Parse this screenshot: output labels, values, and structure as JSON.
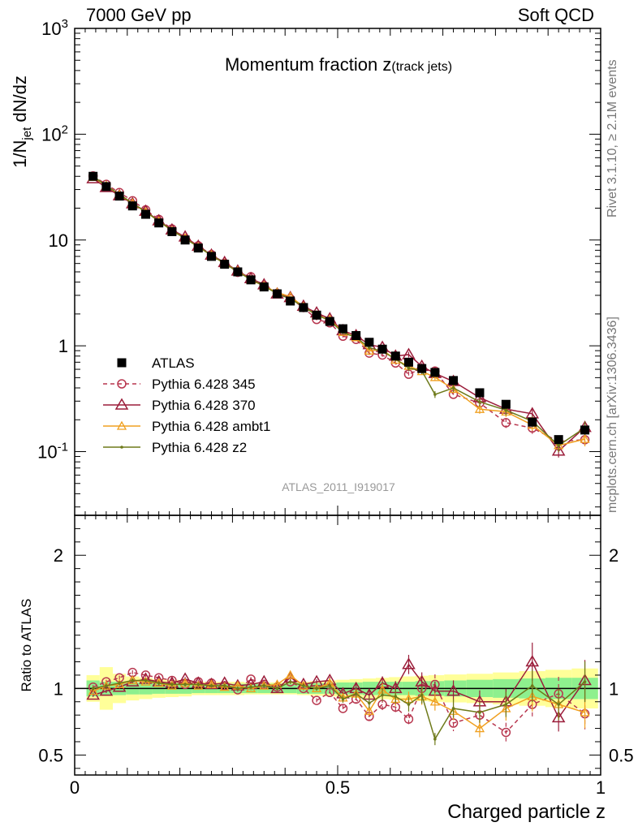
{
  "header": {
    "left": "7000 GeV pp",
    "right": "Soft QCD"
  },
  "side_text": {
    "rivet": "Rivet 3.1.10, ≥ 2.1M events",
    "mcplots": "mcplots.cern.ch [arXiv:1306.3436]"
  },
  "chart_data": {
    "type": "line",
    "title": "Momentum fraction z",
    "title_sub": "(track jets)",
    "ylabel": "1/N_jet dN/dz",
    "xlabel": "Charged particle z",
    "ratio_ylabel": "Ratio to ATLAS",
    "analysis_label": "ATLAS_2011_I919017",
    "yscale": "log",
    "xlim": [
      0,
      1
    ],
    "ylim": [
      0.025,
      1000
    ],
    "ratio_ylim": [
      0.35,
      2.3
    ],
    "x_ticklabels": [
      "0",
      "0.5",
      "1"
    ],
    "y_ticklabels": [
      "10^-1",
      "1",
      "10",
      "10^2",
      "10^3"
    ],
    "ratio_ticklabels": [
      "0.5",
      "1",
      "2"
    ],
    "legend_position": "lower-left",
    "x": [
      0.035,
      0.06,
      0.085,
      0.11,
      0.135,
      0.16,
      0.185,
      0.21,
      0.235,
      0.26,
      0.285,
      0.31,
      0.335,
      0.36,
      0.385,
      0.41,
      0.435,
      0.46,
      0.485,
      0.51,
      0.535,
      0.56,
      0.585,
      0.61,
      0.635,
      0.66,
      0.685,
      0.72,
      0.77,
      0.82,
      0.87,
      0.92,
      0.97
    ],
    "series": [
      {
        "name": "ATLAS",
        "color": "#000000",
        "values": [
          40,
          32,
          26,
          21,
          17.5,
          14.5,
          12,
          10,
          8.4,
          7,
          5.9,
          5,
          4.2,
          3.6,
          3.1,
          2.65,
          2.3,
          1.95,
          1.7,
          1.45,
          1.25,
          1.08,
          0.93,
          0.8,
          0.7,
          0.61,
          0.56,
          0.47,
          0.36,
          0.28,
          0.19,
          0.13,
          0.16
        ],
        "band_inner": [
          0.06,
          0.05,
          0.05,
          0.045,
          0.045,
          0.04,
          0.04,
          0.04,
          0.035,
          0.035,
          0.035,
          0.035,
          0.035,
          0.035,
          0.035,
          0.035,
          0.04,
          0.04,
          0.04,
          0.045,
          0.045,
          0.05,
          0.05,
          0.05,
          0.05,
          0.055,
          0.055,
          0.06,
          0.065,
          0.07,
          0.075,
          0.08,
          0.08
        ],
        "band_outer": [
          0.1,
          0.16,
          0.11,
          0.09,
          0.08,
          0.07,
          0.065,
          0.06,
          0.05,
          0.05,
          0.05,
          0.05,
          0.045,
          0.045,
          0.045,
          0.045,
          0.05,
          0.055,
          0.06,
          0.065,
          0.07,
          0.075,
          0.08,
          0.085,
          0.09,
          0.095,
          0.1,
          0.105,
          0.11,
          0.12,
          0.13,
          0.14,
          0.15
        ]
      },
      {
        "name": "Pythia 6.428 345",
        "color": "#b8374f",
        "ratio": [
          1.01,
          1.05,
          1.08,
          1.12,
          1.1,
          1.08,
          1.06,
          1.03,
          1.05,
          1.04,
          1.02,
          0.99,
          1.07,
          1.03,
          1.01,
          1.05,
          1.0,
          0.91,
          0.97,
          0.85,
          0.92,
          0.79,
          0.88,
          0.86,
          0.77,
          1.0,
          1.03,
          0.74,
          0.8,
          0.67,
          0.88,
          0.96,
          0.81
        ]
      },
      {
        "name": "Pythia 6.428 370",
        "color": "#9b1d3a",
        "ratio": [
          0.95,
          0.98,
          1.01,
          1.05,
          1.07,
          1.05,
          1.04,
          1.07,
          1.04,
          1.03,
          1.04,
          1.02,
          1.03,
          1.05,
          1.0,
          1.08,
          1.03,
          1.05,
          1.06,
          0.96,
          1.0,
          0.95,
          1.04,
          1.0,
          1.18,
          1.05,
          0.98,
          0.98,
          0.9,
          0.9,
          1.2,
          0.78,
          1.06
        ]
      },
      {
        "name": "Pythia 6.428 ambt1",
        "color": "#f0a020",
        "ratio": [
          0.98,
          1.02,
          1.03,
          1.06,
          1.05,
          1.04,
          1.02,
          1.04,
          1.02,
          1.03,
          1.01,
          1.02,
          1.0,
          1.02,
          1.03,
          1.1,
          1.02,
          1.0,
          1.04,
          0.93,
          0.96,
          0.83,
          0.99,
          0.92,
          0.92,
          0.94,
          0.9,
          0.83,
          0.7,
          0.85,
          0.94,
          0.88,
          0.82
        ]
      },
      {
        "name": "Pythia 6.428 z2",
        "color": "#6e7a1a",
        "ratio": [
          1.0,
          1.02,
          1.04,
          1.06,
          1.06,
          1.04,
          1.03,
          1.03,
          1.03,
          1.02,
          1.02,
          1.0,
          1.01,
          1.02,
          1.0,
          1.05,
          1.02,
          1.0,
          1.02,
          0.92,
          0.96,
          0.89,
          0.95,
          0.94,
          0.88,
          0.95,
          0.62,
          0.85,
          0.82,
          0.88,
          1.02,
          0.88,
          1.05
        ]
      }
    ]
  }
}
